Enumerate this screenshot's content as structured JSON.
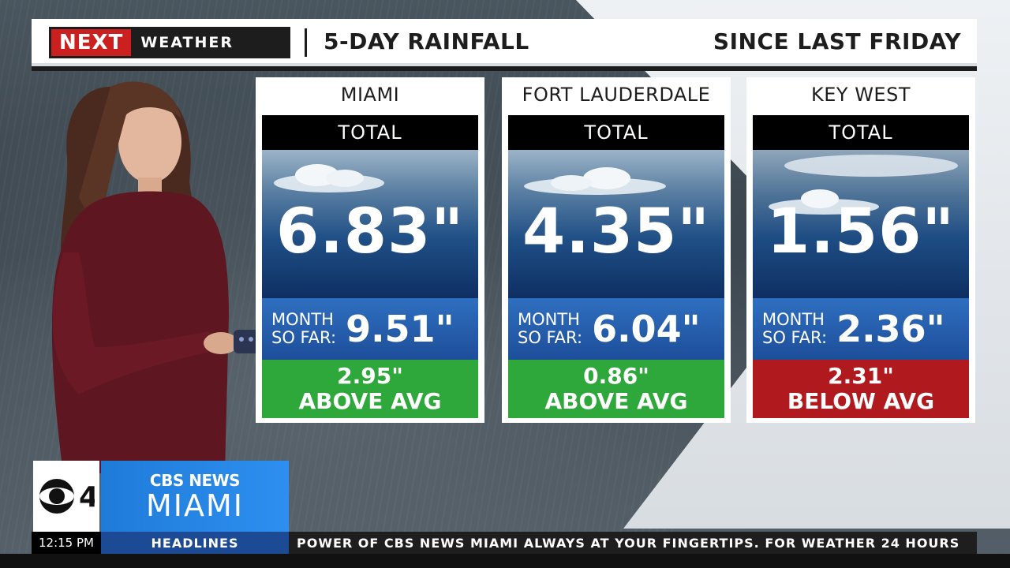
{
  "header": {
    "brand_next": "NEXT",
    "brand_weather": "WEATHER",
    "title": "5-DAY RAINFALL",
    "subtitle": "SINCE LAST FRIDAY"
  },
  "cards": [
    {
      "city": "MIAMI",
      "total_label": "TOTAL",
      "total": "6.83\"",
      "month_label_1": "MONTH",
      "month_label_2": "SO FAR:",
      "month_value": "9.51\"",
      "diff": "2.95\"",
      "diff_label": "ABOVE AVG",
      "status_color": "#2ea83a"
    },
    {
      "city": "FORT LAUDERDALE",
      "total_label": "TOTAL",
      "total": "4.35\"",
      "month_label_1": "MONTH",
      "month_label_2": "SO FAR:",
      "month_value": "6.04\"",
      "diff": "0.86\"",
      "diff_label": "ABOVE AVG",
      "status_color": "#2ea83a"
    },
    {
      "city": "KEY WEST",
      "total_label": "TOTAL",
      "total": "1.56\"",
      "month_label_1": "MONTH",
      "month_label_2": "SO FAR:",
      "month_value": "2.36\"",
      "diff": "2.31\"",
      "diff_label": "BELOW AVG",
      "status_color": "#b01a1f"
    }
  ],
  "station": {
    "channel_number": "4",
    "network": "CBS NEWS",
    "city": "MIAMI"
  },
  "ticker": {
    "time": "12:15 PM",
    "label": "HEADLINES",
    "text": "POWER OF CBS NEWS MIAMI ALWAYS AT YOUR FINGERTIPS. FOR WEATHER 24 HOURS"
  },
  "colors": {
    "brand_red": "#cc1f1f",
    "above_avg": "#2ea83a",
    "below_avg": "#b01a1f",
    "month_blue": "#1d4e9a",
    "station_blue": "#2e8ff0"
  }
}
